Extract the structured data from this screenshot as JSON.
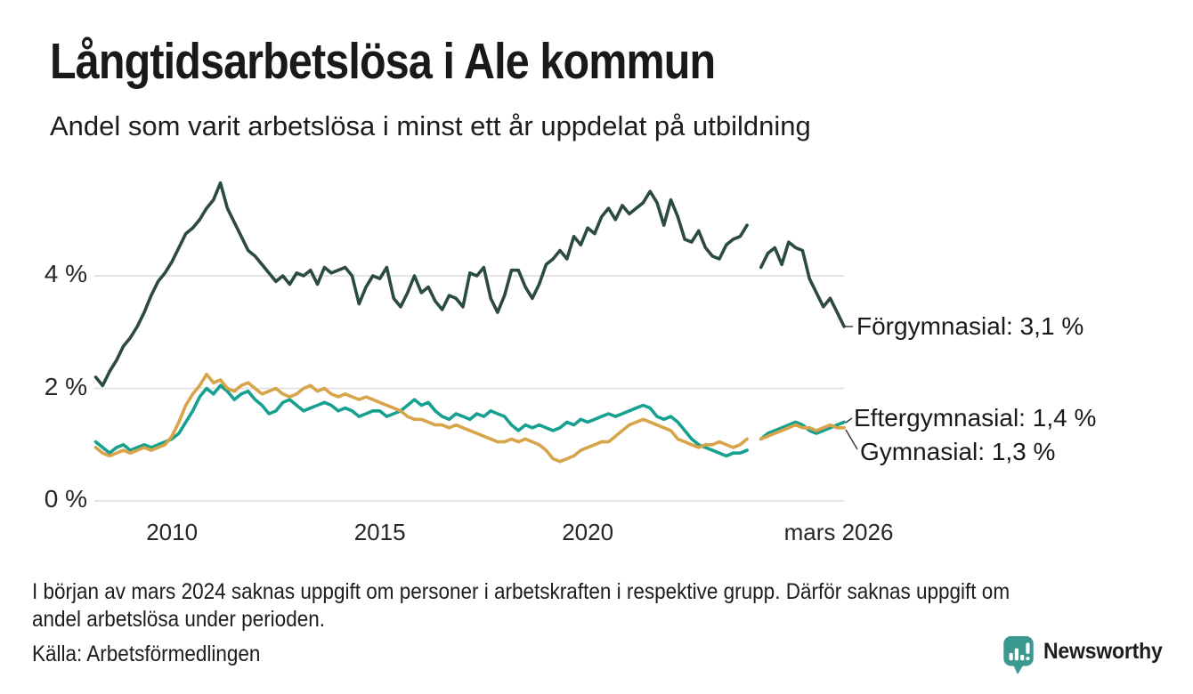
{
  "chart_data": {
    "type": "line",
    "title": "Långtidsarbetslösa i Ale kommun",
    "subtitle": "Andel som varit arbetslösa i minst ett år uppdelat på utbildning",
    "x_start": 2008.1667,
    "x_step": 0.1666667,
    "xlim": [
      2008.17,
      2026.17
    ],
    "ylim": [
      0,
      5.8
    ],
    "grid": "horizontal",
    "legend_position": "end-of-line-labels",
    "x_ticks": [
      {
        "label": "2010",
        "year": 2010
      },
      {
        "label": "2015",
        "year": 2015
      },
      {
        "label": "2020",
        "year": 2020
      },
      {
        "label": "mars 2026",
        "year": 2026.1667
      }
    ],
    "y_ticks": [
      {
        "label": "0 %",
        "value": 0
      },
      {
        "label": "2 %",
        "value": 2
      },
      {
        "label": "4 %",
        "value": 4
      }
    ],
    "annotations": [
      {
        "label": "Förgymnasial: 3,1 %",
        "value": 3.1
      },
      {
        "label": "Eftergymnasial: 1,4 %",
        "value": 1.4
      },
      {
        "label": "Gymnasial: 1,3 %",
        "value": 1.3
      }
    ],
    "series": [
      {
        "name": "Förgymnasial",
        "color": "#2A4A42",
        "last_value_label": "3,1 %",
        "values": [
          2.2,
          2.05,
          2.3,
          2.5,
          2.75,
          2.9,
          3.1,
          3.35,
          3.65,
          3.9,
          4.05,
          4.25,
          4.5,
          4.75,
          4.85,
          5.0,
          5.2,
          5.35,
          5.65,
          5.2,
          4.95,
          4.7,
          4.45,
          4.35,
          4.2,
          4.05,
          3.9,
          4.0,
          3.85,
          4.05,
          4.0,
          4.1,
          3.85,
          4.15,
          4.05,
          4.1,
          4.15,
          4.0,
          3.5,
          3.8,
          4.0,
          3.95,
          4.15,
          3.6,
          3.45,
          3.7,
          4.0,
          3.7,
          3.8,
          3.55,
          3.4,
          3.65,
          3.6,
          3.45,
          4.05,
          4.0,
          4.15,
          3.6,
          3.35,
          3.65,
          4.1,
          4.1,
          3.8,
          3.6,
          3.85,
          4.2,
          4.3,
          4.45,
          4.3,
          4.7,
          4.55,
          4.85,
          4.75,
          5.05,
          5.2,
          5.0,
          5.25,
          5.1,
          5.2,
          5.3,
          5.5,
          5.3,
          4.9,
          5.35,
          5.05,
          4.65,
          4.6,
          4.8,
          4.5,
          4.35,
          4.3,
          4.55,
          4.65,
          4.7,
          4.9,
          null,
          4.15,
          4.4,
          4.5,
          4.2,
          4.6,
          4.5,
          4.45,
          3.95,
          3.7,
          3.45,
          3.6,
          3.35,
          3.1
        ]
      },
      {
        "name": "Eftergymnasial",
        "color": "#16A08F",
        "last_value_label": "1,4 %",
        "values": [
          1.05,
          0.95,
          0.85,
          0.95,
          1.0,
          0.9,
          0.95,
          1.0,
          0.95,
          1.0,
          1.05,
          1.1,
          1.2,
          1.4,
          1.6,
          1.85,
          2.0,
          1.9,
          2.05,
          1.95,
          1.8,
          1.9,
          1.95,
          1.8,
          1.7,
          1.55,
          1.6,
          1.75,
          1.8,
          1.7,
          1.6,
          1.65,
          1.7,
          1.75,
          1.7,
          1.6,
          1.65,
          1.6,
          1.5,
          1.55,
          1.6,
          1.6,
          1.5,
          1.55,
          1.6,
          1.7,
          1.8,
          1.7,
          1.75,
          1.6,
          1.5,
          1.45,
          1.55,
          1.5,
          1.45,
          1.55,
          1.5,
          1.6,
          1.55,
          1.5,
          1.35,
          1.25,
          1.35,
          1.3,
          1.35,
          1.3,
          1.25,
          1.3,
          1.4,
          1.35,
          1.45,
          1.4,
          1.45,
          1.5,
          1.55,
          1.5,
          1.55,
          1.6,
          1.65,
          1.7,
          1.65,
          1.5,
          1.45,
          1.5,
          1.4,
          1.25,
          1.1,
          1.0,
          0.95,
          0.9,
          0.85,
          0.8,
          0.85,
          0.85,
          0.9,
          null,
          1.1,
          1.2,
          1.25,
          1.3,
          1.35,
          1.4,
          1.35,
          1.25,
          1.2,
          1.25,
          1.3,
          1.35,
          1.4
        ]
      },
      {
        "name": "Gymnasial",
        "color": "#D7A449",
        "last_value_label": "1,3 %",
        "values": [
          0.95,
          0.85,
          0.8,
          0.85,
          0.9,
          0.85,
          0.9,
          0.95,
          0.9,
          0.95,
          1.0,
          1.15,
          1.4,
          1.7,
          1.9,
          2.05,
          2.25,
          2.1,
          2.15,
          2.0,
          1.95,
          2.05,
          2.1,
          2.0,
          1.9,
          1.95,
          2.0,
          1.9,
          1.85,
          1.9,
          2.0,
          2.05,
          1.95,
          2.0,
          1.9,
          1.85,
          1.9,
          1.85,
          1.8,
          1.85,
          1.8,
          1.75,
          1.7,
          1.65,
          1.6,
          1.5,
          1.45,
          1.45,
          1.4,
          1.35,
          1.35,
          1.3,
          1.35,
          1.3,
          1.25,
          1.2,
          1.15,
          1.1,
          1.05,
          1.05,
          1.1,
          1.05,
          1.1,
          1.05,
          1.0,
          0.9,
          0.75,
          0.7,
          0.75,
          0.8,
          0.9,
          0.95,
          1.0,
          1.05,
          1.05,
          1.15,
          1.25,
          1.35,
          1.4,
          1.45,
          1.4,
          1.35,
          1.3,
          1.25,
          1.1,
          1.05,
          1.0,
          0.95,
          1.0,
          1.0,
          1.05,
          1.0,
          0.95,
          1.0,
          1.1,
          null,
          1.1,
          1.15,
          1.2,
          1.25,
          1.3,
          1.35,
          1.3,
          1.3,
          1.25,
          1.3,
          1.35,
          1.3,
          1.3
        ]
      }
    ]
  },
  "footnote": {
    "line1": "I början av mars 2024 saknas uppgift om personer i arbetskraften i respektive grupp. Därför saknas uppgift om",
    "line2": "andel arbetslösa under perioden."
  },
  "source": "Källa: Arbetsförmedlingen",
  "logo": {
    "text": "Newsworthy",
    "color": "#2F9C92",
    "icon_color": "#3B9A8F"
  }
}
